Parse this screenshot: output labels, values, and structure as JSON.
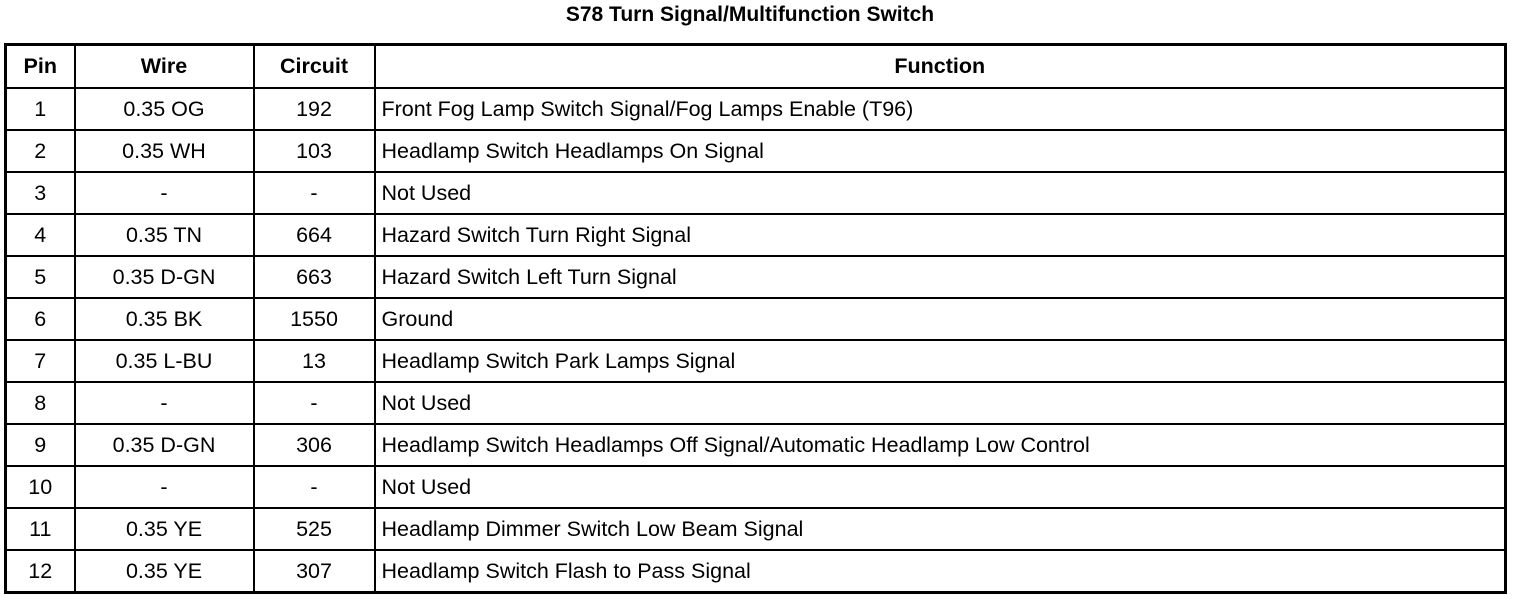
{
  "title": "S78 Turn Signal/Multifunction Switch",
  "headers": {
    "pin": "Pin",
    "wire": "Wire",
    "circuit": "Circuit",
    "function": "Function"
  },
  "rows": [
    {
      "pin": "1",
      "wire": "0.35 OG",
      "circuit": "192",
      "function": "Front Fog Lamp Switch Signal/Fog Lamps Enable (T96)"
    },
    {
      "pin": "2",
      "wire": "0.35 WH",
      "circuit": "103",
      "function": "Headlamp Switch Headlamps On Signal"
    },
    {
      "pin": "3",
      "wire": "-",
      "circuit": "-",
      "function": "Not Used"
    },
    {
      "pin": "4",
      "wire": "0.35 TN",
      "circuit": "664",
      "function": "Hazard Switch Turn Right Signal"
    },
    {
      "pin": "5",
      "wire": "0.35 D-GN",
      "circuit": "663",
      "function": "Hazard Switch Left Turn Signal"
    },
    {
      "pin": "6",
      "wire": "0.35 BK",
      "circuit": "1550",
      "function": "Ground"
    },
    {
      "pin": "7",
      "wire": "0.35 L-BU",
      "circuit": "13",
      "function": "Headlamp Switch Park Lamps Signal"
    },
    {
      "pin": "8",
      "wire": "-",
      "circuit": "-",
      "function": "Not Used"
    },
    {
      "pin": "9",
      "wire": "0.35 D-GN",
      "circuit": "306",
      "function": "Headlamp Switch Headlamps Off Signal/Automatic Headlamp Low Control"
    },
    {
      "pin": "10",
      "wire": "-",
      "circuit": "-",
      "function": "Not Used"
    },
    {
      "pin": "11",
      "wire": "0.35 YE",
      "circuit": "525",
      "function": "Headlamp Dimmer Switch Low Beam Signal"
    },
    {
      "pin": "12",
      "wire": "0.35 YE",
      "circuit": "307",
      "function": "Headlamp Switch Flash to Pass Signal"
    }
  ]
}
